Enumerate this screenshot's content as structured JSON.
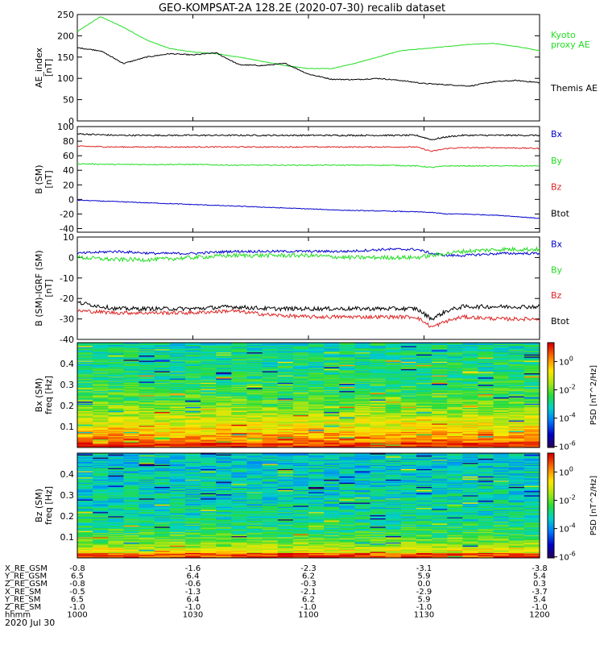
{
  "title": "GEO-KOMPSAT-2A 128.2E (2020-07-30) recalib dataset",
  "colors": {
    "black": "#000000",
    "green": "#22dd22",
    "red": "#dd2222",
    "blue": "#0000cc"
  },
  "chart_data": [
    {
      "type": "line",
      "id": "ae",
      "ylabel": [
        "AE_index",
        "[nT]"
      ],
      "ylim": [
        0,
        250
      ],
      "yticks": [
        0,
        50,
        100,
        150,
        200,
        250
      ],
      "x": [
        0,
        6,
        12,
        18,
        24,
        30,
        36,
        42,
        48,
        54,
        60,
        66,
        72,
        78,
        84,
        90,
        96,
        102,
        108,
        114,
        120
      ],
      "series": [
        {
          "name": "Kyoto proxy AE",
          "color": "#22dd22",
          "noise": 0.6,
          "values": [
            210,
            245,
            220,
            190,
            170,
            162,
            158,
            150,
            140,
            130,
            123,
            123,
            135,
            150,
            165,
            170,
            175,
            180,
            182,
            175,
            165
          ]
        },
        {
          "name": "Themis AE",
          "color": "#000000",
          "noise": 1.2,
          "values": [
            172,
            165,
            135,
            150,
            158,
            155,
            160,
            132,
            130,
            135,
            110,
            98,
            97,
            100,
            95,
            88,
            85,
            82,
            92,
            95,
            90
          ]
        }
      ],
      "legend": [
        {
          "lines": [
            "Kyoto",
            "proxy AE"
          ],
          "color": "#22dd22"
        },
        {
          "lines": [
            "Themis AE"
          ],
          "color": "#000000"
        }
      ]
    },
    {
      "type": "line",
      "id": "b",
      "ylabel": [
        "B (SM)",
        "[nT]"
      ],
      "ylim": [
        -45,
        100
      ],
      "yticks": [
        -40,
        -20,
        0,
        20,
        40,
        60,
        80,
        100
      ],
      "x": [
        0,
        10,
        20,
        30,
        40,
        50,
        60,
        70,
        80,
        88,
        92,
        96,
        100,
        110,
        120
      ],
      "series": [
        {
          "name": "Btot",
          "color": "#000000",
          "noise": 1.0,
          "values": [
            90,
            88,
            88,
            88,
            88,
            88,
            88,
            88,
            88,
            88,
            82,
            86,
            88,
            88,
            88
          ]
        },
        {
          "name": "Bz",
          "color": "#dd2222",
          "noise": 0.8,
          "values": [
            73,
            72,
            72,
            72,
            72,
            72,
            72,
            72,
            72,
            72,
            66,
            70,
            71,
            71,
            70
          ]
        },
        {
          "name": "By",
          "color": "#22dd22",
          "noise": 0.7,
          "values": [
            49,
            48,
            48,
            48,
            47,
            47,
            47,
            47,
            47,
            46,
            44,
            46,
            46,
            46,
            46
          ]
        },
        {
          "name": "Bx",
          "color": "#0000cc",
          "noise": 0.5,
          "values": [
            -1,
            -3,
            -5,
            -7,
            -9,
            -11,
            -13,
            -15,
            -16,
            -17,
            -18,
            -20,
            -20,
            -22,
            -26
          ]
        }
      ],
      "legend": [
        {
          "lines": [
            "Bx"
          ],
          "color": "#0000cc"
        },
        {
          "lines": [
            "By"
          ],
          "color": "#22dd22"
        },
        {
          "lines": [
            "Bz"
          ],
          "color": "#dd2222"
        },
        {
          "lines": [
            "Btot"
          ],
          "color": "#000000"
        }
      ]
    },
    {
      "type": "line",
      "id": "dbsm",
      "ylabel": [
        "B (SM)-IGRF (SM)",
        "[nT]"
      ],
      "ylim": [
        -40,
        10
      ],
      "yticks": [
        -40,
        -30,
        -20,
        -10,
        0,
        10
      ],
      "x": [
        0,
        10,
        20,
        30,
        40,
        50,
        60,
        70,
        80,
        88,
        92,
        96,
        100,
        110,
        120
      ],
      "series": [
        {
          "name": "Bx",
          "color": "#0000cc",
          "noise": 0.6,
          "values": [
            2,
            3,
            2,
            2,
            3,
            3,
            3,
            3,
            4,
            4,
            2,
            1,
            1,
            2,
            2
          ]
        },
        {
          "name": "By",
          "color": "#22dd22",
          "noise": 1.0,
          "values": [
            0,
            -1,
            -1,
            0,
            1,
            1,
            1,
            0,
            0,
            0,
            1,
            2,
            3,
            4,
            4
          ]
        },
        {
          "name": "Btot",
          "color": "#000000",
          "noise": 1.0,
          "values": [
            -22,
            -25,
            -25,
            -25,
            -24,
            -25,
            -25,
            -25,
            -25,
            -25,
            -30,
            -26,
            -24,
            -24,
            -24
          ]
        },
        {
          "name": "Bz",
          "color": "#dd2222",
          "noise": 0.9,
          "values": [
            -26,
            -27,
            -27,
            -27,
            -26,
            -28,
            -29,
            -29,
            -29,
            -29,
            -34,
            -31,
            -29,
            -30,
            -30
          ]
        }
      ],
      "legend": [
        {
          "lines": [
            "Bx"
          ],
          "color": "#0000cc"
        },
        {
          "lines": [
            "By"
          ],
          "color": "#22dd22"
        },
        {
          "lines": [
            "Bz"
          ],
          "color": "#dd2222"
        },
        {
          "lines": [
            "Btot"
          ],
          "color": "#000000"
        }
      ]
    },
    {
      "type": "heatmap",
      "id": "spec_bx",
      "ylabel": [
        "Bx (SM)",
        "freq [Hz]"
      ],
      "ylim": [
        0,
        0.5
      ],
      "yticks": [
        0.1,
        0.2,
        0.3,
        0.4
      ],
      "cbar_label": "PSD [nT^2/Hz]",
      "cbar_ticks": [
        "10^0",
        "10^-2",
        "10^-4",
        "10^-6"
      ],
      "psd_by_freq": [
        0.95,
        0.85,
        0.8,
        0.75,
        0.7,
        0.66,
        0.62,
        0.58,
        0.55,
        0.52,
        0.5,
        0.48,
        0.47,
        0.46,
        0.45,
        0.44,
        0.44,
        0.43,
        0.43,
        0.42,
        0.42
      ]
    },
    {
      "type": "heatmap",
      "id": "spec_bz",
      "ylabel": [
        "Bz (SM)",
        "freq [Hz]"
      ],
      "ylim": [
        0,
        0.5
      ],
      "yticks": [
        0.1,
        0.2,
        0.3,
        0.4
      ],
      "cbar_label": "PSD [nT^2/Hz]",
      "cbar_ticks": [
        "10^0",
        "10^-2",
        "10^-4",
        "10^-6"
      ],
      "psd_by_freq": [
        0.9,
        0.7,
        0.6,
        0.55,
        0.5,
        0.47,
        0.45,
        0.43,
        0.42,
        0.41,
        0.4,
        0.4,
        0.39,
        0.39,
        0.38,
        0.38,
        0.38,
        0.38,
        0.37,
        0.37,
        0.37
      ]
    }
  ],
  "ephemeris": {
    "rows": [
      {
        "label": "X_RE_GSM",
        "values": [
          "-0.8",
          "-1.6",
          "-2.3",
          "-3.1",
          "-3.8"
        ]
      },
      {
        "label": "Y_RE_GSM",
        "values": [
          "6.5",
          "6.4",
          "6.2",
          "5.9",
          "5.4"
        ]
      },
      {
        "label": "Z_RE_GSM",
        "values": [
          "-0.8",
          "-0.6",
          "-0.3",
          "0.0",
          "0.3"
        ]
      },
      {
        "label": "X_RE_SM",
        "values": [
          "-0.5",
          "-1.3",
          "-2.1",
          "-2.9",
          "-3.7"
        ]
      },
      {
        "label": "Y_RE_SM",
        "values": [
          "6.5",
          "6.4",
          "6.2",
          "5.9",
          "5.4"
        ]
      },
      {
        "label": "Z_RE_SM",
        "values": [
          "-1.0",
          "-1.0",
          "-1.0",
          "-1.0",
          "-1.0"
        ]
      },
      {
        "label": "hhmm",
        "values": [
          "1000",
          "1030",
          "1100",
          "1130",
          "1200"
        ]
      }
    ],
    "date": "2020 Jul 30"
  }
}
